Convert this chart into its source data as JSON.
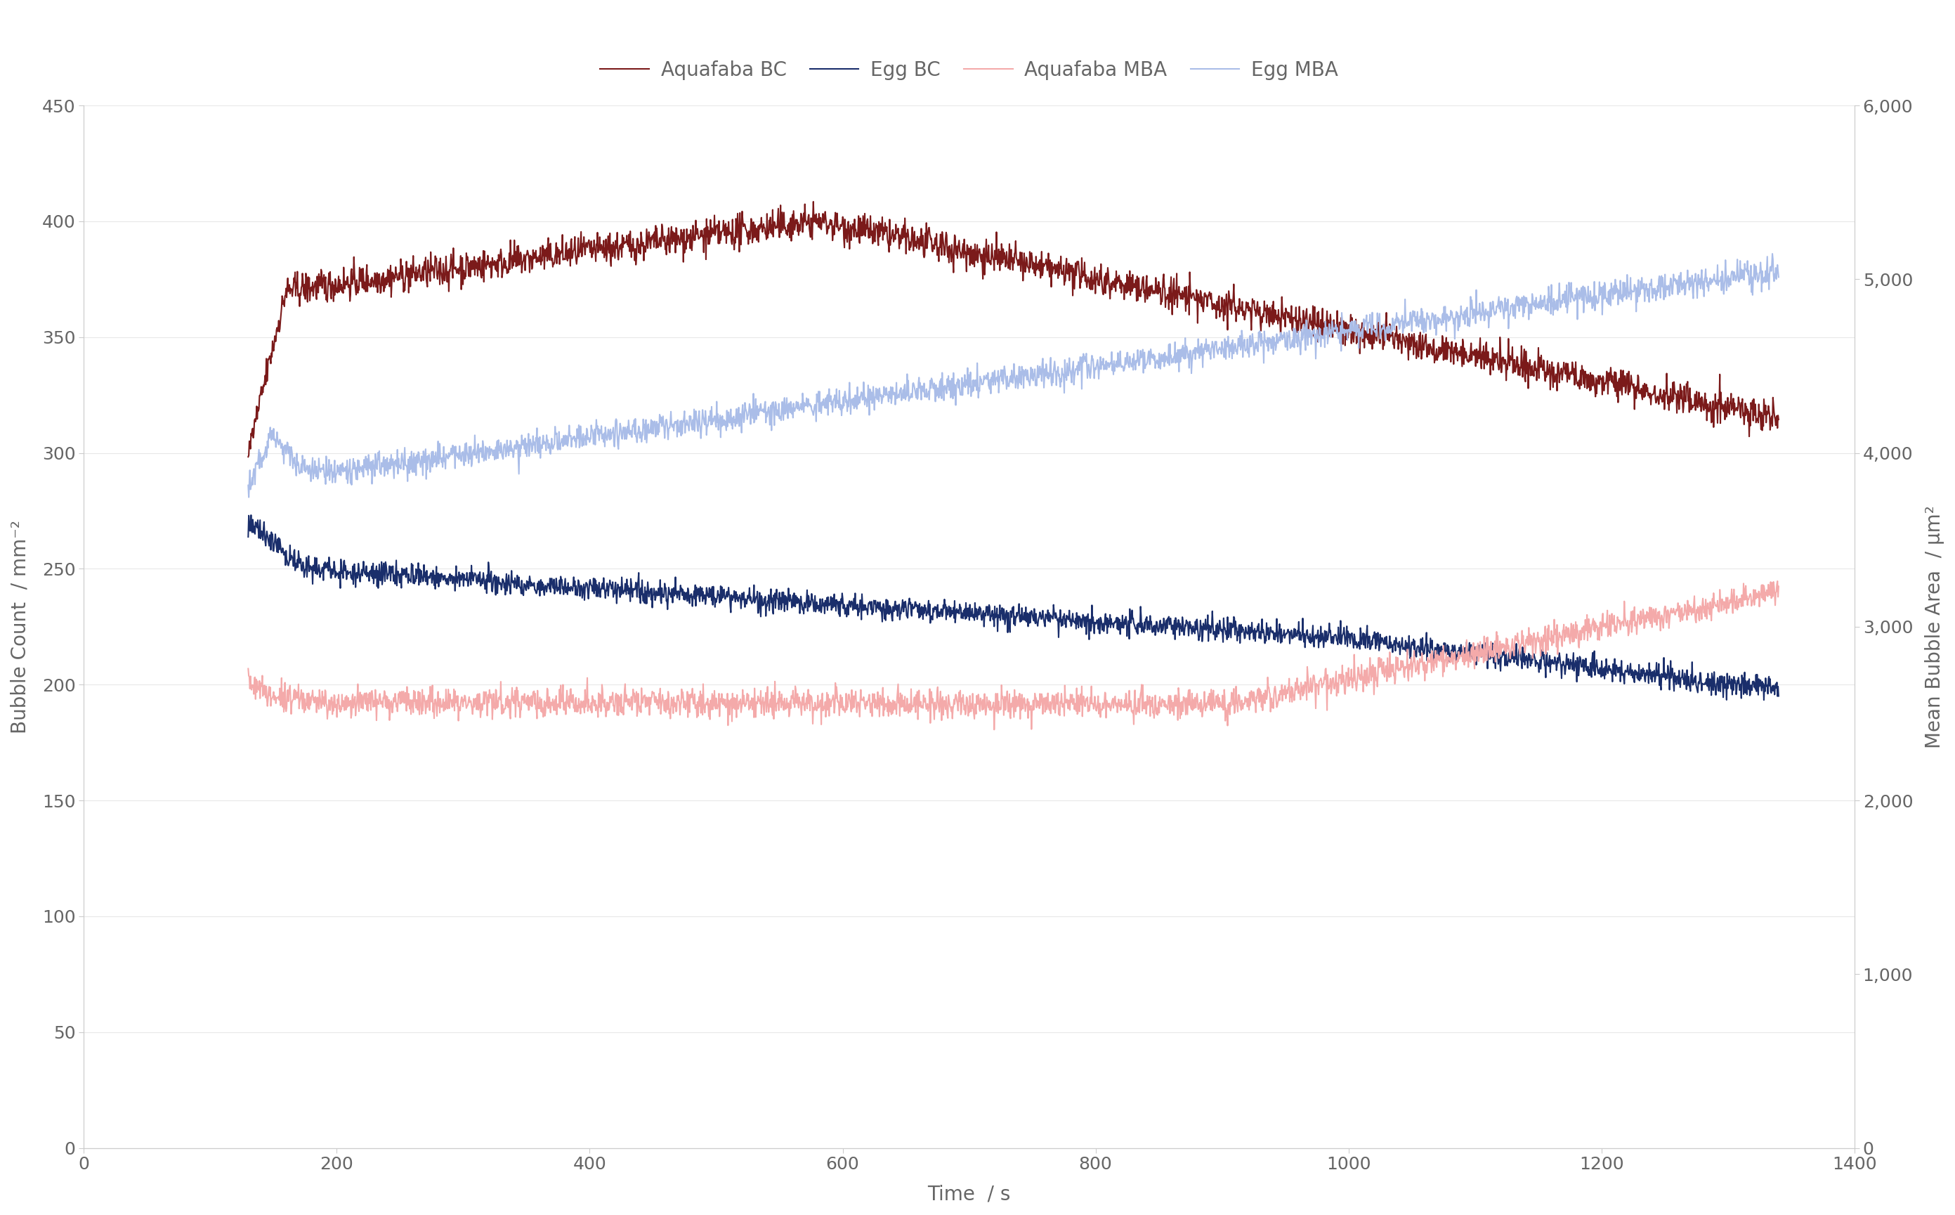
{
  "xlabel": "Time  / s",
  "ylabel_left": "Bubble Count  / mm⁻²",
  "ylabel_right": "Mean Bubble Area  / μm²",
  "xlim": [
    0,
    1400
  ],
  "ylim_left": [
    0,
    450
  ],
  "ylim_right": [
    0,
    6000
  ],
  "xticks": [
    0,
    200,
    400,
    600,
    800,
    1000,
    1200,
    1400
  ],
  "yticks_left": [
    0,
    50,
    100,
    150,
    200,
    250,
    300,
    350,
    400,
    450
  ],
  "yticks_right": [
    0,
    1000,
    2000,
    3000,
    4000,
    5000,
    6000
  ],
  "legend_labels": [
    "Aquafaba BC",
    "Egg BC",
    "Aquafaba MBA",
    "Egg MBA"
  ],
  "colors": {
    "aquafaba_bc": "#7B1A1A",
    "egg_bc": "#1A2E6B",
    "aquafaba_mba": "#F4AAAA",
    "egg_mba": "#AABDE8"
  },
  "background": "#ffffff",
  "grid_color": "#DDDDDD",
  "text_color": "#666666",
  "legend_font_size": 20,
  "axis_font_size": 20,
  "tick_font_size": 18,
  "line_width": 1.5,
  "noise_bc": 3.5,
  "noise_mba": 40
}
